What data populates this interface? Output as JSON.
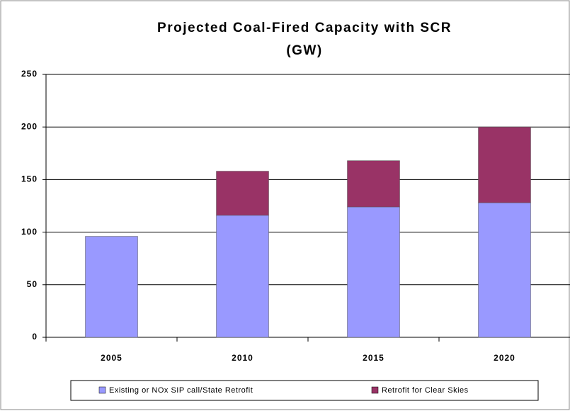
{
  "chart_data": {
    "type": "stacked_bar",
    "title": "Projected Coal-Fired Capacity with SCR",
    "subtitle": "(GW)",
    "categories": [
      "2005",
      "2010",
      "2015",
      "2020"
    ],
    "series": [
      {
        "name": "Existing or NOx SIP call/State Retrofit",
        "color": "#9999ff",
        "values": [
          96,
          116,
          124,
          128
        ]
      },
      {
        "name": "Retrofit for Clear Skies",
        "color": "#993366",
        "values": [
          null,
          42,
          44,
          72
        ]
      }
    ],
    "ylim": [
      0,
      250
    ],
    "yticks": [
      0,
      50,
      100,
      150,
      200,
      250
    ],
    "grid": true,
    "legend": "bottom"
  }
}
